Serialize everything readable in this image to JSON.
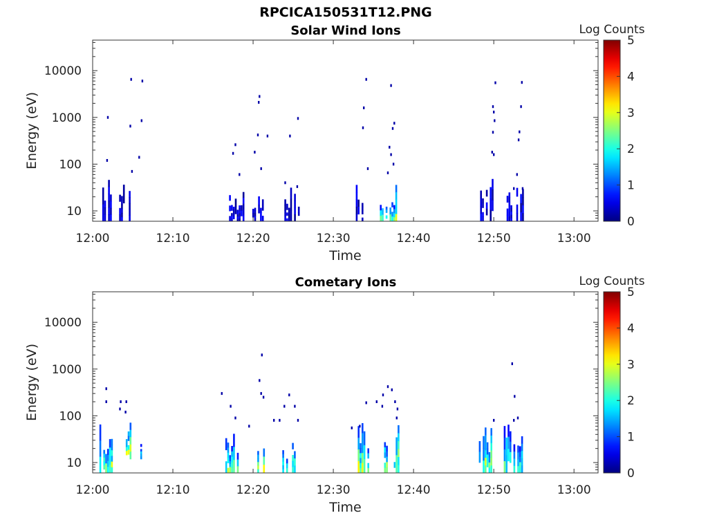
{
  "figure_title": "RPCICA150531T12.PNG",
  "chart_data": [
    {
      "type": "heatmap",
      "title": "Solar Wind Ions",
      "xlabel": "Time",
      "ylabel": "Energy (eV)",
      "x_ticks": [
        "12:00",
        "12:10",
        "12:20",
        "12:30",
        "12:40",
        "12:50",
        "13:00"
      ],
      "x_range_minutes": [
        0,
        63
      ],
      "y_ticks": [
        "10",
        "100",
        "1000",
        "10000"
      ],
      "y_scale": "log",
      "y_range": [
        6,
        45000
      ],
      "colorbar": {
        "label": "Log Counts",
        "min": 0,
        "max": 5,
        "ticks": [
          "0",
          "1",
          "2",
          "3",
          "4",
          "5"
        ],
        "colormap": "jet"
      },
      "bursts": [
        {
          "t0": 1.2,
          "t1": 2.4,
          "emin": 6,
          "emax": 75,
          "level": 0.25
        },
        {
          "t0": 3.3,
          "t1": 4.9,
          "emin": 6,
          "emax": 60,
          "level": 0.25
        },
        {
          "t0": 17.0,
          "t1": 18.8,
          "emin": 6,
          "emax": 30,
          "level": 0.25
        },
        {
          "t0": 19.9,
          "t1": 21.2,
          "emin": 6,
          "emax": 30,
          "level": 0.25
        },
        {
          "t0": 23.9,
          "t1": 25.6,
          "emin": 6,
          "emax": 35,
          "level": 0.15
        },
        {
          "t0": 32.8,
          "t1": 34.0,
          "emin": 6,
          "emax": 50,
          "level": 0.25
        },
        {
          "t0": 35.8,
          "t1": 37.8,
          "emin": 6,
          "emax": 40,
          "level": 0.4
        },
        {
          "t0": 48.3,
          "t1": 49.9,
          "emin": 6,
          "emax": 60,
          "level": 0.25
        },
        {
          "t0": 51.6,
          "t1": 53.6,
          "emin": 6,
          "emax": 35,
          "level": 0.2
        }
      ],
      "sparse_points": [
        [
          1.9,
          1000
        ],
        [
          4.8,
          6500
        ],
        [
          4.7,
          650
        ],
        [
          6.1,
          850
        ],
        [
          6.2,
          6000
        ],
        [
          5.8,
          140
        ],
        [
          4.9,
          70
        ],
        [
          1.8,
          120
        ],
        [
          17.5,
          170
        ],
        [
          17.8,
          260
        ],
        [
          18.3,
          60
        ],
        [
          20.8,
          2800
        ],
        [
          20.7,
          2100
        ],
        [
          20.6,
          420
        ],
        [
          20.2,
          180
        ],
        [
          21.0,
          80
        ],
        [
          21.8,
          400
        ],
        [
          24.0,
          40
        ],
        [
          24.6,
          400
        ],
        [
          25.6,
          950
        ],
        [
          25.5,
          33
        ],
        [
          34.1,
          6500
        ],
        [
          33.8,
          1600
        ],
        [
          33.7,
          600
        ],
        [
          34.3,
          80
        ],
        [
          36.8,
          65
        ],
        [
          37.2,
          4800
        ],
        [
          37.0,
          230
        ],
        [
          37.6,
          750
        ],
        [
          37.4,
          580
        ],
        [
          37.2,
          160
        ],
        [
          37.5,
          100
        ],
        [
          49.9,
          1700
        ],
        [
          50.2,
          5500
        ],
        [
          50.0,
          1300
        ],
        [
          50.1,
          850
        ],
        [
          49.9,
          480
        ],
        [
          49.8,
          180
        ],
        [
          50.0,
          160
        ],
        [
          53.5,
          5600
        ],
        [
          53.4,
          1700
        ],
        [
          53.2,
          490
        ],
        [
          53.1,
          330
        ],
        [
          52.9,
          60
        ],
        [
          52.5,
          30
        ],
        [
          53.6,
          30
        ]
      ]
    },
    {
      "type": "heatmap",
      "title": "Cometary Ions",
      "xlabel": "Time",
      "ylabel": "Energy (eV)",
      "x_ticks": [
        "12:00",
        "12:10",
        "12:20",
        "12:30",
        "12:40",
        "12:50",
        "13:00"
      ],
      "x_range_minutes": [
        0,
        63
      ],
      "y_ticks": [
        "10",
        "100",
        "1000",
        "10000"
      ],
      "y_scale": "log",
      "y_range": [
        6,
        45000
      ],
      "colorbar": {
        "label": "Log Counts",
        "min": 0,
        "max": 5,
        "ticks": [
          "0",
          "1",
          "2",
          "3",
          "4",
          "5"
        ],
        "colormap": "jet"
      },
      "bursts": [
        {
          "t0": 0.6,
          "t1": 2.4,
          "emin": 6,
          "emax": 100,
          "level": 0.45
        },
        {
          "t0": 3.4,
          "t1": 4.8,
          "emin": 12,
          "emax": 100,
          "level": 0.55
        },
        {
          "t0": 5.7,
          "t1": 6.1,
          "emin": 12,
          "emax": 38,
          "level": 0.3
        },
        {
          "t0": 16.3,
          "t1": 18.0,
          "emin": 6,
          "emax": 45,
          "level": 0.45
        },
        {
          "t0": 19.8,
          "t1": 21.3,
          "emin": 6,
          "emax": 45,
          "level": 0.45
        },
        {
          "t0": 23.4,
          "t1": 25.2,
          "emin": 6,
          "emax": 35,
          "level": 0.4
        },
        {
          "t0": 32.8,
          "t1": 34.4,
          "emin": 6,
          "emax": 90,
          "level": 0.45
        },
        {
          "t0": 35.6,
          "t1": 38.2,
          "emin": 6,
          "emax": 110,
          "level": 0.45
        },
        {
          "t0": 47.9,
          "t1": 50.1,
          "emin": 6,
          "emax": 70,
          "level": 0.45
        },
        {
          "t0": 51.0,
          "t1": 53.6,
          "emin": 6,
          "emax": 90,
          "level": 0.35
        }
      ],
      "sparse_points": [
        [
          1.7,
          380
        ],
        [
          1.7,
          200
        ],
        [
          3.5,
          200
        ],
        [
          4.2,
          200
        ],
        [
          3.4,
          140
        ],
        [
          4.1,
          120
        ],
        [
          16.1,
          300
        ],
        [
          17.2,
          160
        ],
        [
          17.8,
          90
        ],
        [
          19.5,
          60
        ],
        [
          21.1,
          2000
        ],
        [
          20.8,
          570
        ],
        [
          21.0,
          300
        ],
        [
          21.3,
          250
        ],
        [
          22.6,
          80
        ],
        [
          23.3,
          80
        ],
        [
          23.9,
          160
        ],
        [
          24.5,
          280
        ],
        [
          25.2,
          160
        ],
        [
          25.6,
          80
        ],
        [
          32.3,
          55
        ],
        [
          33.3,
          60
        ],
        [
          34.1,
          190
        ],
        [
          35.4,
          200
        ],
        [
          36.2,
          280
        ],
        [
          36.8,
          420
        ],
        [
          37.3,
          360
        ],
        [
          37.7,
          200
        ],
        [
          38.0,
          140
        ],
        [
          37.9,
          90
        ],
        [
          36.1,
          160
        ],
        [
          50.0,
          80
        ],
        [
          52.3,
          1300
        ],
        [
          52.6,
          260
        ],
        [
          52.5,
          80
        ],
        [
          53.0,
          90
        ]
      ]
    }
  ]
}
